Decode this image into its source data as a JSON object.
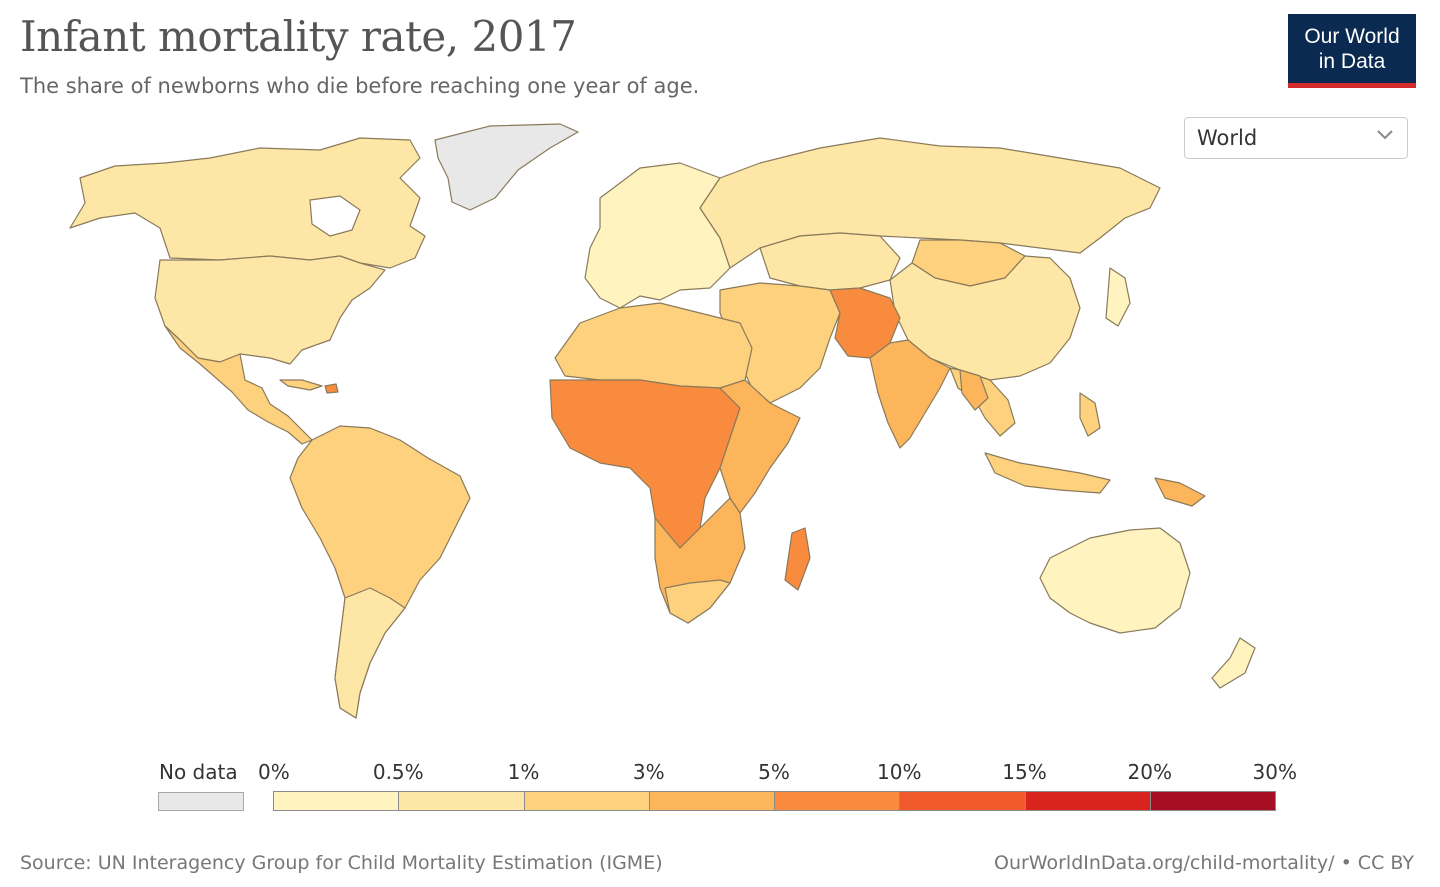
{
  "header": {
    "title": "Infant mortality rate, 2017",
    "subtitle": "The share of newborns who die before reaching one year of age."
  },
  "logo": {
    "line1": "Our World",
    "line2": "in Data"
  },
  "region_select": {
    "selected": "World",
    "icon": "chevron-down-icon"
  },
  "legend": {
    "no_data_label": "No data",
    "no_data_color": "#e8e8e8",
    "tick_labels": [
      "0%",
      "0.5%",
      "1%",
      "3%",
      "5%",
      "10%",
      "15%",
      "20%",
      "30%"
    ],
    "bins": [
      {
        "from": "0%",
        "to": "0.5%",
        "color": "#fff3c0"
      },
      {
        "from": "0.5%",
        "to": "1%",
        "color": "#fde6a6"
      },
      {
        "from": "1%",
        "to": "3%",
        "color": "#fdd17e"
      },
      {
        "from": "3%",
        "to": "5%",
        "color": "#fcb55a"
      },
      {
        "from": "5%",
        "to": "10%",
        "color": "#f88b3d"
      },
      {
        "from": "10%",
        "to": "15%",
        "color": "#f05a2c"
      },
      {
        "from": "15%",
        "to": "20%",
        "color": "#d9241e"
      },
      {
        "from": "20%",
        "to": "30%",
        "color": "#a60e23"
      }
    ]
  },
  "footer": {
    "source": "Source: UN Interagency Group for Child Mortality Estimation (IGME)",
    "url": "OurWorldInData.org/child-mortality/ • CC BY"
  },
  "map_regions": [
    {
      "region": "Canada",
      "bin": "0.5%-1%",
      "color": "#fde6a6"
    },
    {
      "region": "USA",
      "bin": "0.5%-1%",
      "color": "#fde6a6"
    },
    {
      "region": "Mexico and Central America",
      "bin": "1%-3%",
      "color": "#fdd17e"
    },
    {
      "region": "South America",
      "bin": "1%-3%",
      "color": "#fdd17e"
    },
    {
      "region": "Greenland",
      "bin": "No data",
      "color": "#e8e8e8"
    },
    {
      "region": "Europe",
      "bin": "0%-0.5%",
      "color": "#fff3c0"
    },
    {
      "region": "Russia",
      "bin": "0.5%-1%",
      "color": "#fde6a6"
    },
    {
      "region": "China",
      "bin": "0.5%-1%",
      "color": "#fde6a6"
    },
    {
      "region": "Middle East",
      "bin": "1%-3%",
      "color": "#fdd17e"
    },
    {
      "region": "South Asia",
      "bin": "3%-5%",
      "color": "#fcb55a"
    },
    {
      "region": "Pakistan/Afghanistan",
      "bin": "5%-10%",
      "color": "#f88b3d"
    },
    {
      "region": "North Africa",
      "bin": "1%-3%",
      "color": "#fdd17e"
    },
    {
      "region": "West and Central Africa",
      "bin": "5%-10%",
      "color": "#f88b3d"
    },
    {
      "region": "East Africa",
      "bin": "3%-5%",
      "color": "#fcb55a"
    },
    {
      "region": "Southern Africa",
      "bin": "3%-5%",
      "color": "#fcb55a"
    },
    {
      "region": "South-East Asia",
      "bin": "1%-3%",
      "color": "#fdd17e"
    },
    {
      "region": "Australia and New Zealand",
      "bin": "0%-0.5%",
      "color": "#fff3c0"
    }
  ]
}
